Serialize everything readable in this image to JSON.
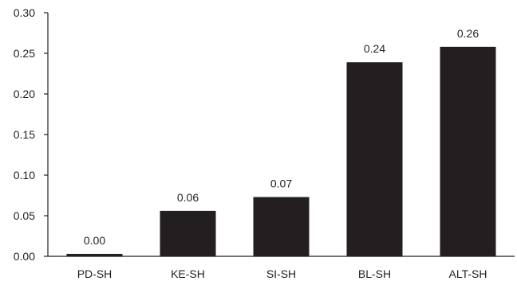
{
  "chart_data": {
    "type": "bar",
    "title": "",
    "xlabel": "",
    "ylabel": "",
    "categories": [
      "PD-SH",
      "KE-SH",
      "SI-SH",
      "BL-SH",
      "ALT-SH"
    ],
    "values": [
      0.003,
      0.056,
      0.073,
      0.239,
      0.258
    ],
    "data_labels": [
      "0.00",
      "0.06",
      "0.07",
      "0.24",
      "0.26"
    ],
    "ylim": [
      0,
      0.3
    ],
    "yticks": [
      0,
      0.05,
      0.1,
      0.15,
      0.2,
      0.25,
      0.3
    ],
    "ytick_labels": [
      "0.00",
      "0.05",
      "0.10",
      "0.15",
      "0.20",
      "0.25",
      "0.30"
    ],
    "grid": false,
    "legend": "none",
    "colors": {
      "bar": "#231f20",
      "axis": "#231f20",
      "text": "#231f20",
      "background": "#ffffff"
    }
  }
}
